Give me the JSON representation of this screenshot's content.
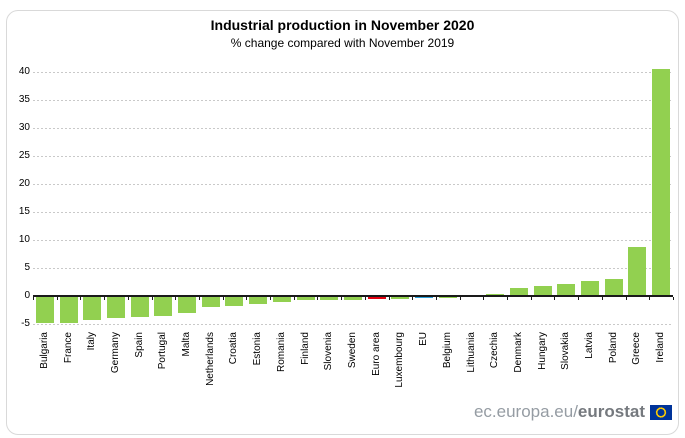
{
  "panel": {
    "title": "Industrial production in November 2020",
    "subtitle": "% change compared with November 2019",
    "footer": {
      "url_prefix": "ec.europa.eu/",
      "url_bold": "eurostat",
      "flag_icon": "eu-flag-icon",
      "flag_blue": "#003399",
      "flag_star_color": "#ffcc00"
    }
  },
  "chart_data": {
    "type": "bar",
    "title": "Industrial production in November 2020",
    "subtitle": "% change compared with November 2019",
    "xlabel": "",
    "ylabel": "% change vs November 2019",
    "ylim": [
      -5,
      40
    ],
    "yticks": [
      40,
      35,
      30,
      25,
      20,
      15,
      10,
      5,
      0,
      -5
    ],
    "grid": "horizontal-dashed",
    "legend": "none",
    "categories": [
      "Bulgaria",
      "France",
      "Italy",
      "Germany",
      "Spain",
      "Portugal",
      "Malta",
      "Netherlands",
      "Croatia",
      "Estonia",
      "Romania",
      "Finland",
      "Slovenia",
      "Sweden",
      "Euro area",
      "Luxembourg",
      "EU",
      "Belgium",
      "Lithuania",
      "Czechia",
      "Denmark",
      "Hungary",
      "Slovakia",
      "Latvia",
      "Poland",
      "Greece",
      "Ireland"
    ],
    "values": [
      -4.9,
      -4.8,
      -4.3,
      -3.9,
      -3.8,
      -3.5,
      -3.0,
      -2.0,
      -1.8,
      -1.5,
      -1.0,
      -0.8,
      -0.7,
      -0.7,
      -0.6,
      -0.6,
      -0.4,
      -0.4,
      -0.1,
      0.3,
      1.5,
      1.7,
      2.2,
      2.7,
      3.0,
      8.7,
      40.6
    ],
    "colors": {
      "default": "#92d050",
      "Euro area": "#e3000f",
      "EU": "#2b9fd9",
      "gridline": "#c9c9c9",
      "axis": "#1a1a1a"
    }
  }
}
